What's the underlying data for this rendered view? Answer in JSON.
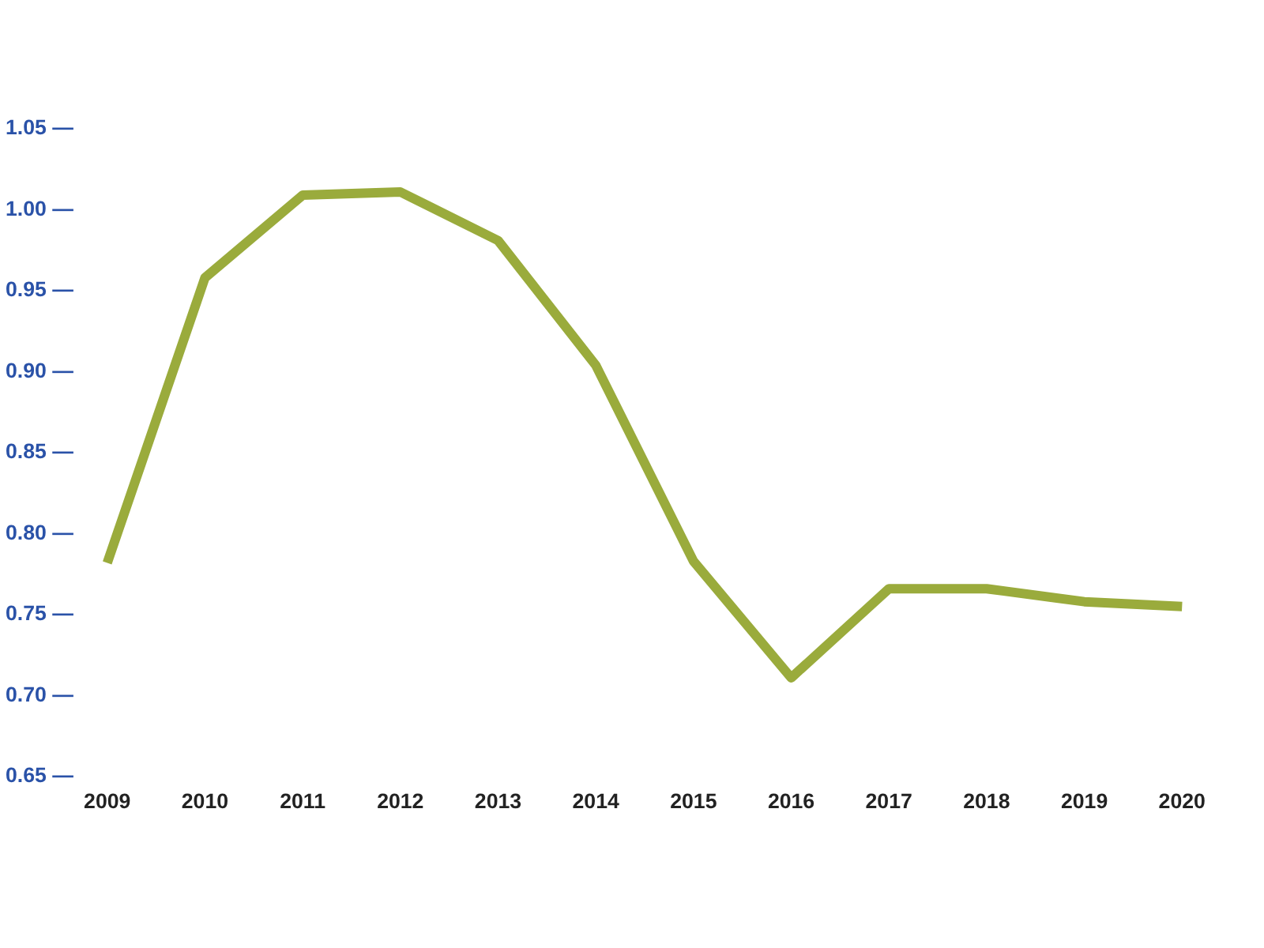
{
  "chart_data": {
    "type": "line",
    "categories": [
      "2009",
      "2010",
      "2011",
      "2012",
      "2013",
      "2014",
      "2015",
      "2016",
      "2017",
      "2018",
      "2019",
      "2020"
    ],
    "series": [
      {
        "color": "#9aab3c",
        "values": [
          0.781,
          0.957,
          1.008,
          1.01,
          0.98,
          0.903,
          0.782,
          0.71,
          0.765,
          0.765,
          0.757,
          0.754
        ]
      }
    ],
    "ylim": [
      0.65,
      1.05
    ],
    "yticks": [
      {
        "value": 0.65,
        "label": "0.65 —"
      },
      {
        "value": 0.7,
        "label": "0.70 —"
      },
      {
        "value": 0.75,
        "label": "0.75 —"
      },
      {
        "value": 0.8,
        "label": "0.80 —"
      },
      {
        "value": 0.85,
        "label": "0.85 —"
      },
      {
        "value": 0.9,
        "label": "0.90 —"
      },
      {
        "value": 0.95,
        "label": "0.95 —"
      },
      {
        "value": 1.0,
        "label": "1.00 —"
      },
      {
        "value": 1.05,
        "label": "1.05 —"
      }
    ],
    "grid": false,
    "marker": "none",
    "line_style": "solid"
  }
}
